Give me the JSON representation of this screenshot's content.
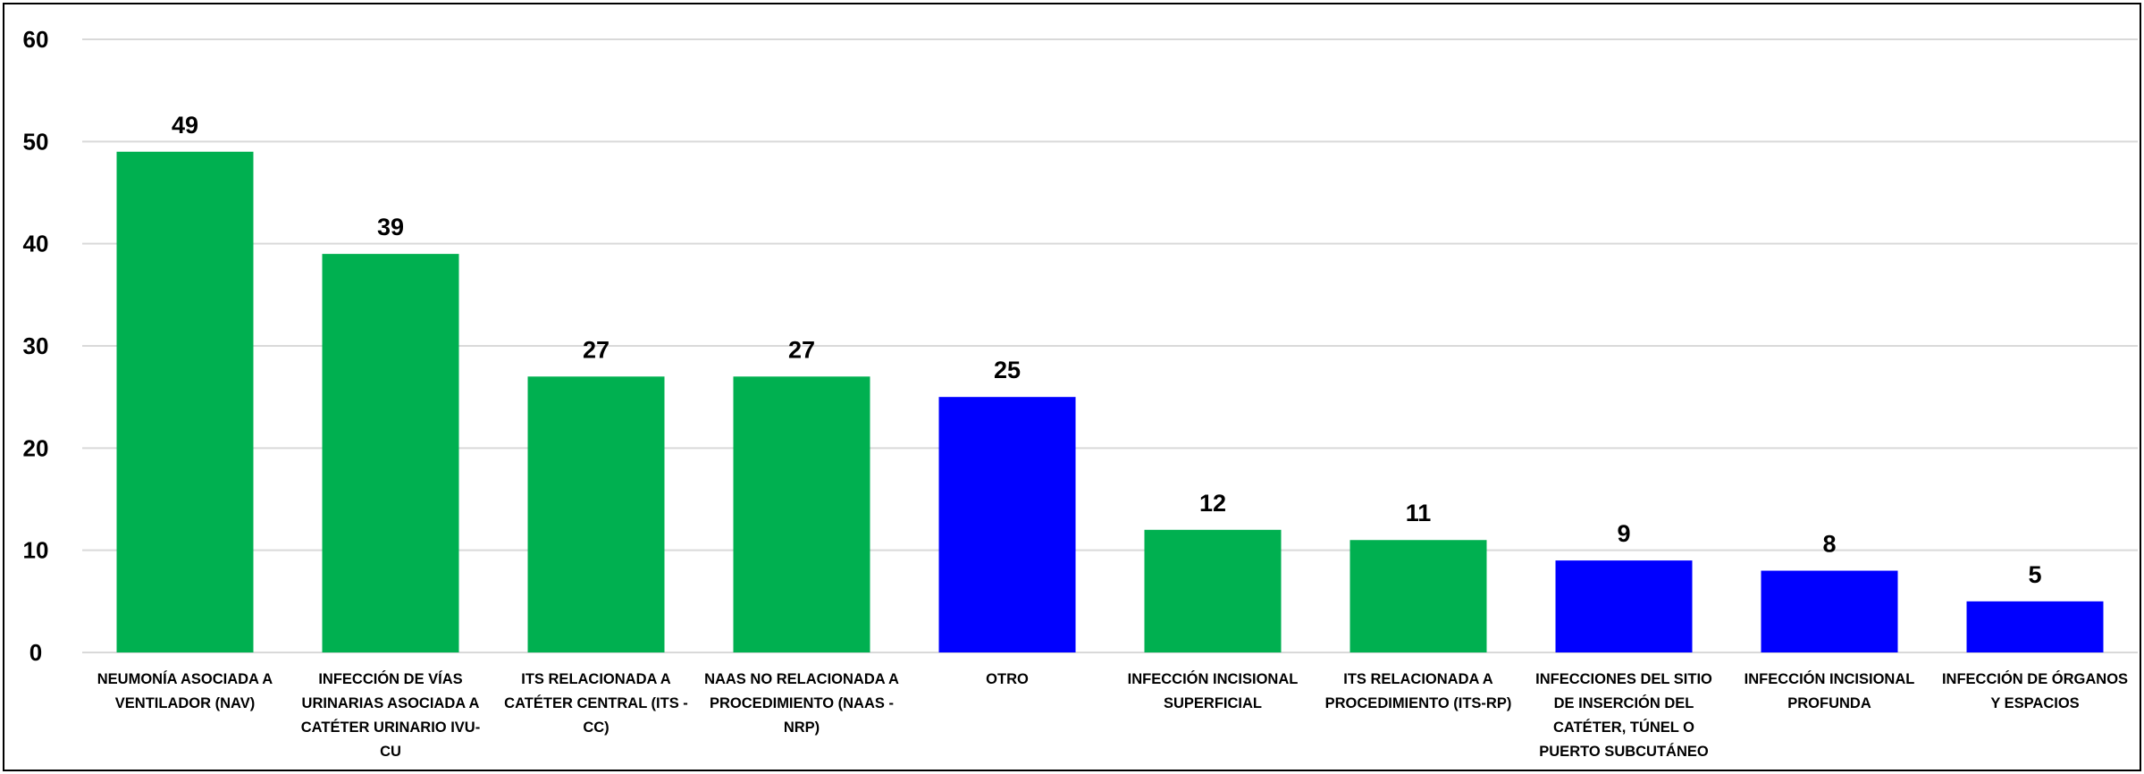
{
  "chart_data": {
    "type": "bar",
    "title": "",
    "xlabel": "",
    "ylabel": "",
    "ylim": [
      0,
      60
    ],
    "yticks": [
      0,
      10,
      20,
      30,
      40,
      50,
      60
    ],
    "grid": true,
    "legend": "none",
    "categories": [
      "NEUMONÍA ASOCIADA A VENTILADOR (NAV)",
      "INFECCIÓN DE VÍAS URINARIAS ASOCIADA A CATÉTER URINARIO IVU-CU",
      "ITS RELACIONADA A CATÉTER CENTRAL (ITS - CC)",
      "NAAS NO RELACIONADA A PROCEDIMIENTO (NAAS - NRP)",
      "OTRO",
      "INFECCIÓN INCISIONAL SUPERFICIAL",
      "ITS RELACIONADA A PROCEDIMIENTO (ITS-RP)",
      "INFECCIONES DEL SITIO DE INSERCIÓN DEL CATÉTER, TÚNEL O PUERTO SUBCUTÁNEO",
      "INFECCIÓN INCISIONAL PROFUNDA",
      "INFECCIÓN DE ÓRGANOS Y ESPACIOS"
    ],
    "category_label_lines": [
      [
        "NEUMONÍA ASOCIADA A",
        "VENTILADOR (NAV)"
      ],
      [
        "INFECCIÓN DE VÍAS",
        "URINARIAS ASOCIADA A",
        "CATÉTER URINARIO IVU-",
        "CU"
      ],
      [
        "ITS RELACIONADA A",
        "CATÉTER CENTRAL (ITS -",
        "CC)"
      ],
      [
        "NAAS NO RELACIONADA A",
        "PROCEDIMIENTO (NAAS -",
        "NRP)"
      ],
      [
        "OTRO"
      ],
      [
        "INFECCIÓN INCISIONAL",
        "SUPERFICIAL"
      ],
      [
        "ITS RELACIONADA A",
        "PROCEDIMIENTO (ITS-RP)"
      ],
      [
        "INFECCIONES DEL SITIO",
        "DE INSERCIÓN DEL",
        "CATÉTER, TÚNEL O",
        "PUERTO SUBCUTÁNEO"
      ],
      [
        "INFECCIÓN INCISIONAL",
        "PROFUNDA"
      ],
      [
        "INFECCIÓN DE ÓRGANOS",
        "Y ESPACIOS"
      ]
    ],
    "values": [
      49,
      39,
      27,
      27,
      25,
      12,
      11,
      9,
      8,
      5
    ],
    "bar_colors": [
      "#00b050",
      "#00b050",
      "#00b050",
      "#00b050",
      "#0000ff",
      "#00b050",
      "#00b050",
      "#0000ff",
      "#0000ff",
      "#0000ff"
    ],
    "data_labels": true,
    "colors": {
      "green": "#00b050",
      "blue": "#0000ff",
      "grid": "#d9d9d9",
      "text": "#000000"
    }
  }
}
